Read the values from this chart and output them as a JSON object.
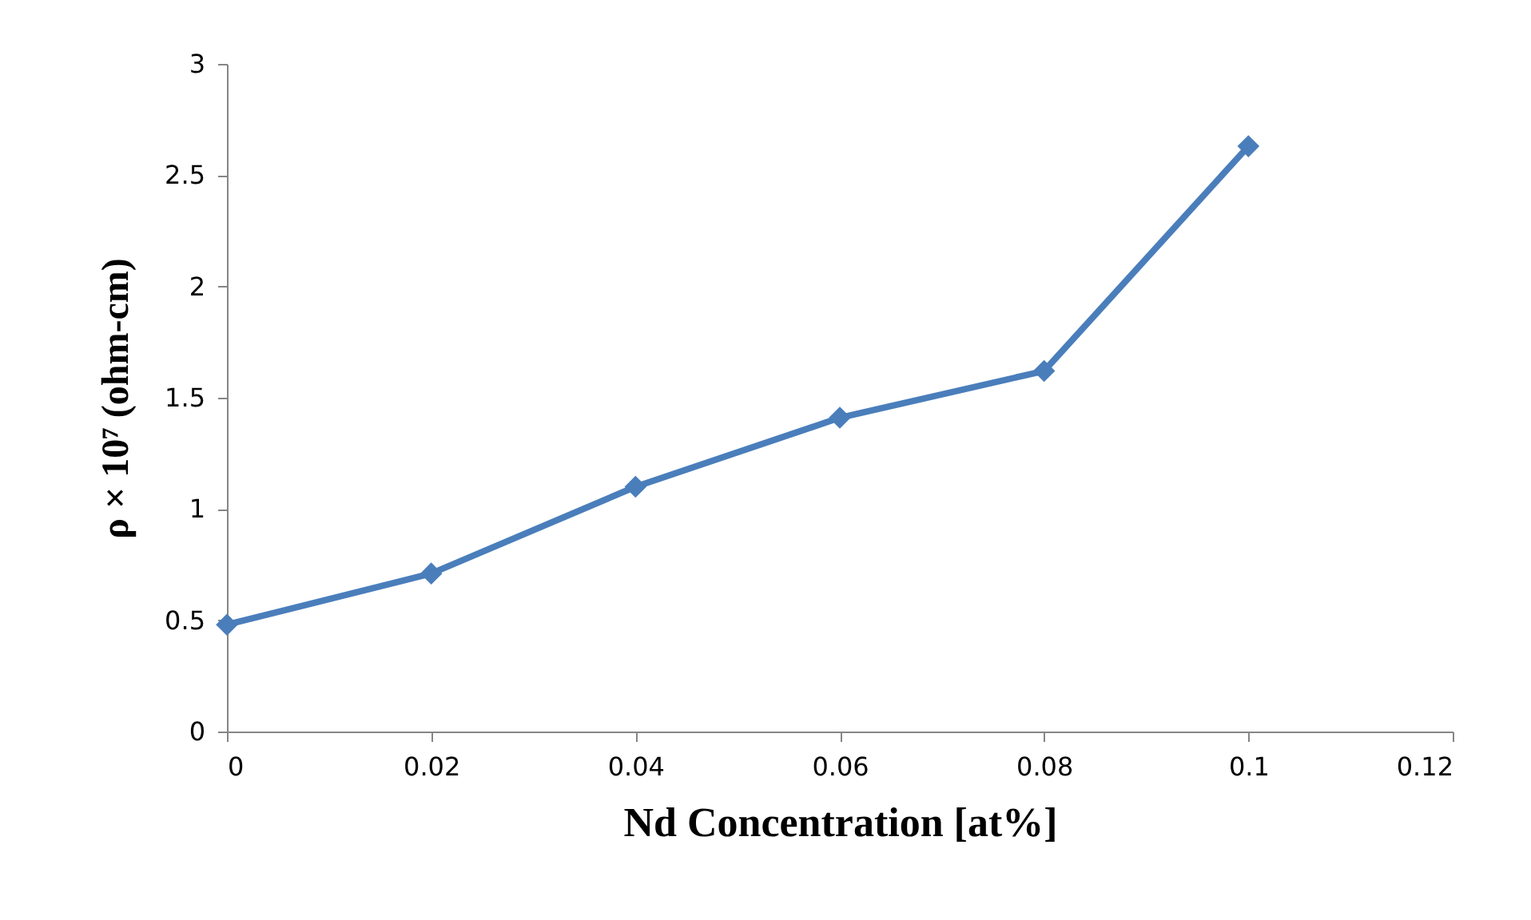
{
  "chart_data": {
    "type": "line",
    "xlabel": "Nd   Concentration [at%]",
    "ylabel": "ρ × 10⁷ (ohm-cm)",
    "x": [
      0,
      0.02,
      0.04,
      0.06,
      0.08,
      0.1
    ],
    "series": [
      {
        "color": "#4a7ebb",
        "values": [
          0.48,
          0.71,
          1.1,
          1.41,
          1.62,
          2.63
        ]
      }
    ],
    "xlim": [
      0,
      0.12
    ],
    "xticks": [
      0,
      0.02,
      0.04,
      0.06,
      0.08,
      0.1,
      0.12
    ],
    "ylim": [
      0,
      3
    ],
    "yticks": [
      0,
      0.5,
      1,
      1.5,
      2,
      2.5,
      3
    ],
    "grid": false,
    "marker": "diamond",
    "line_style": "solid"
  }
}
